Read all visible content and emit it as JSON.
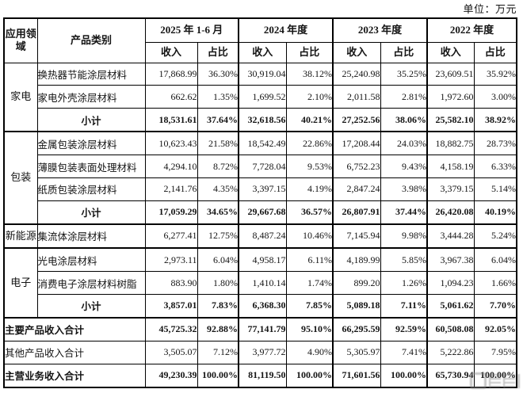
{
  "unit_note": "单位：万元",
  "table": {
    "headers": {
      "app_field": "应用领域",
      "product_category": "产品类别",
      "periods": [
        "2025 年 1-6 月",
        "2024 年度",
        "2023 年度",
        "2022 年度"
      ],
      "revenue": "收入",
      "share": "占比"
    },
    "rows": [
      {
        "group": "家电",
        "group_rowspan": 3,
        "label": "换热器节能涂层材料",
        "values": [
          "17,868.99",
          "36.30%",
          "30,919.04",
          "38.12%",
          "25,240.98",
          "35.25%",
          "23,609.51",
          "35.92%"
        ]
      },
      {
        "label": "家电外壳涂层材料",
        "values": [
          "662.62",
          "1.35%",
          "1,699.52",
          "2.10%",
          "2,011.58",
          "2.81%",
          "1,972.60",
          "3.00%"
        ]
      },
      {
        "label": "小计",
        "bold": true,
        "label_center": true,
        "values": [
          "18,531.61",
          "37.64%",
          "32,618.56",
          "40.21%",
          "27,252.56",
          "38.06%",
          "25,582.10",
          "38.92%"
        ]
      },
      {
        "group": "包装",
        "group_rowspan": 4,
        "group_start": true,
        "label": "金属包装涂层材料",
        "values": [
          "10,623.43",
          "21.58%",
          "18,542.49",
          "22.86%",
          "17,208.44",
          "24.03%",
          "18,882.75",
          "28.73%"
        ]
      },
      {
        "label": "薄膜包装表面处理材料",
        "values": [
          "4,294.10",
          "8.72%",
          "7,728.04",
          "9.53%",
          "6,752.23",
          "9.43%",
          "4,158.19",
          "6.33%"
        ]
      },
      {
        "label": "纸质包装涂层材料",
        "values": [
          "2,141.76",
          "4.35%",
          "3,397.15",
          "4.19%",
          "2,847.24",
          "3.98%",
          "3,379.15",
          "5.14%"
        ]
      },
      {
        "label": "小计",
        "bold": true,
        "label_center": true,
        "values": [
          "17,059.29",
          "34.65%",
          "29,667.68",
          "36.57%",
          "26,807.91",
          "37.44%",
          "26,420.08",
          "40.19%"
        ]
      },
      {
        "group": "新能源",
        "group_rowspan": 1,
        "group_start": true,
        "label": "集流体涂层材料",
        "values": [
          "6,277.41",
          "12.75%",
          "8,487.24",
          "10.46%",
          "7,145.94",
          "9.98%",
          "3,444.28",
          "5.24%"
        ]
      },
      {
        "group": "电子",
        "group_rowspan": 3,
        "group_start": true,
        "label": "光电涂层材料",
        "values": [
          "2,973.11",
          "6.04%",
          "4,958.17",
          "6.11%",
          "4,189.99",
          "5.85%",
          "3,967.38",
          "6.04%"
        ]
      },
      {
        "label": "消费电子涂层材料树脂",
        "values": [
          "883.90",
          "1.80%",
          "1,410.14",
          "1.74%",
          "899.20",
          "1.26%",
          "1,094.23",
          "1.66%"
        ]
      },
      {
        "label": "小计",
        "bold": true,
        "label_center": true,
        "values": [
          "3,857.01",
          "7.83%",
          "6,368.30",
          "7.85%",
          "5,089.18",
          "7.11%",
          "5,061.62",
          "7.70%"
        ]
      },
      {
        "label": "主要产品收入合计",
        "bold": true,
        "span": true,
        "group_start": true,
        "values": [
          "45,725.32",
          "92.88%",
          "77,141.79",
          "95.10%",
          "66,295.59",
          "92.59%",
          "60,508.08",
          "92.05%"
        ]
      },
      {
        "label": "其他产品收入合计",
        "span": true,
        "values": [
          "3,505.07",
          "7.12%",
          "3,977.72",
          "4.90%",
          "5,305.97",
          "7.41%",
          "5,222.86",
          "7.95%"
        ]
      },
      {
        "label": "主营业务收入合计",
        "bold": true,
        "span": true,
        "values": [
          "49,230.39",
          "100.00%",
          "81,119.50",
          "100.00%",
          "71,601.56",
          "100.00%",
          "65,730.94",
          "100.00%"
        ]
      }
    ]
  }
}
